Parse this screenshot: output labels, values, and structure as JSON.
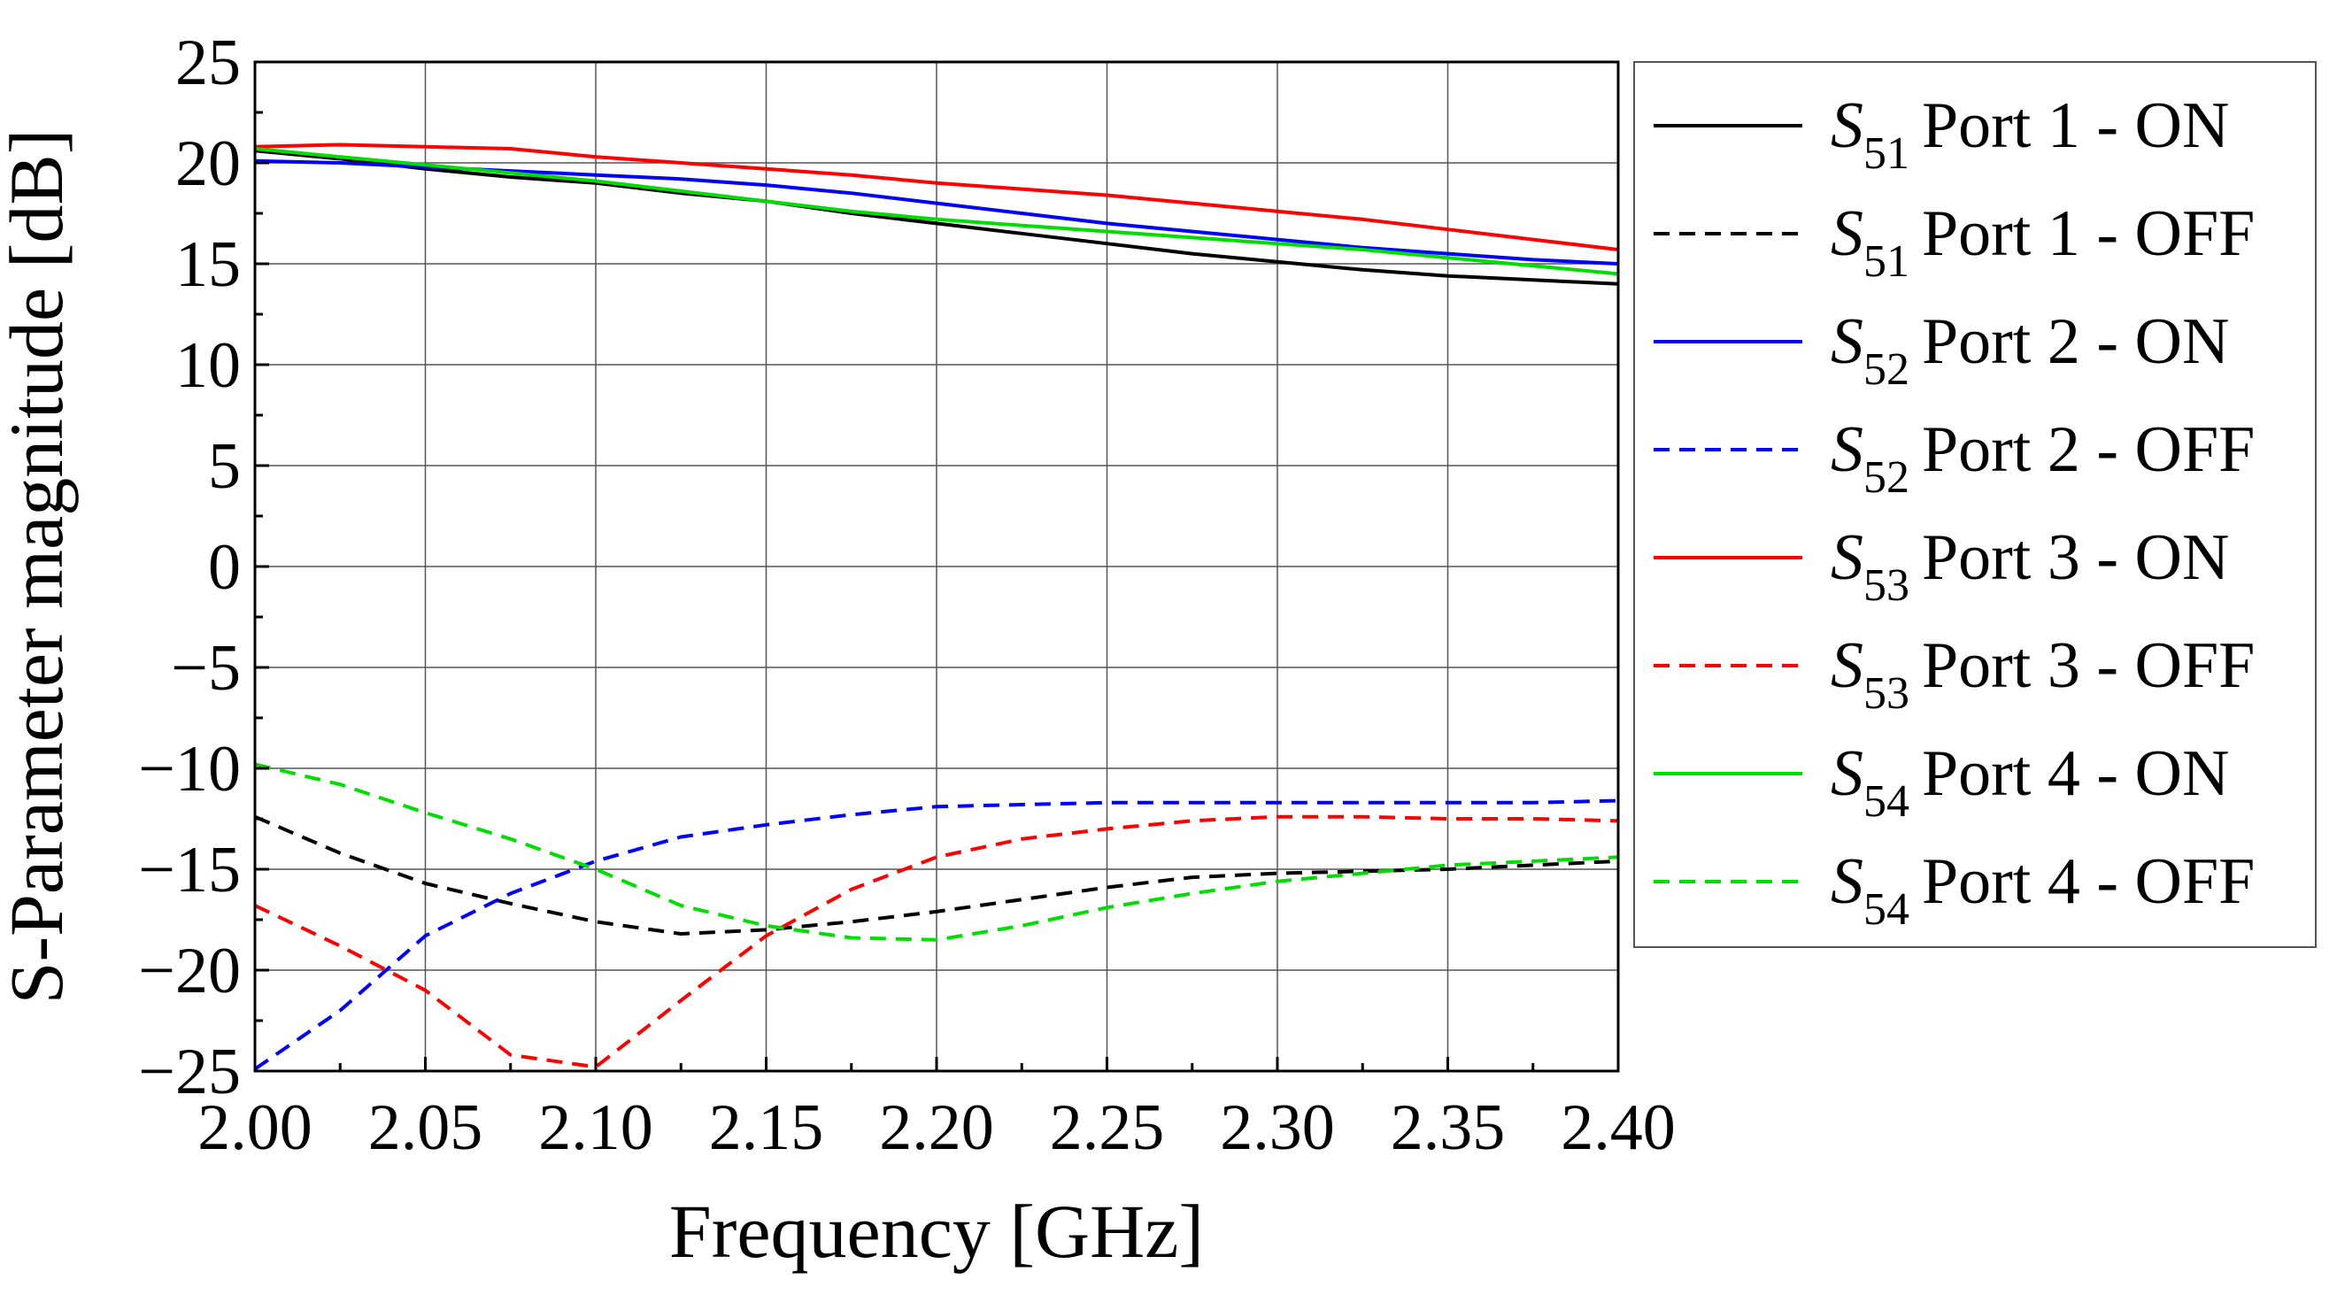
{
  "chart_data": {
    "type": "line",
    "title": "",
    "xlabel": "Frequency [GHz]",
    "ylabel": "S-Parameter magnitude [dB]",
    "xlim": [
      2.0,
      2.4
    ],
    "ylim": [
      -25,
      25
    ],
    "grid": true,
    "legend_position": "right",
    "x_ticks": [
      2.0,
      2.05,
      2.1,
      2.15,
      2.2,
      2.25,
      2.3,
      2.35,
      2.4
    ],
    "x_tick_labels": [
      "2.00",
      "2.05",
      "2.10",
      "2.15",
      "2.20",
      "2.25",
      "2.30",
      "2.35",
      "2.40"
    ],
    "y_ticks": [
      25,
      20,
      15,
      10,
      5,
      0,
      -5,
      -10,
      -15,
      -20,
      -25
    ],
    "y_tick_labels": [
      "25",
      "20",
      "15",
      "10",
      "5",
      "0",
      "−5",
      "−10",
      "−15",
      "−20",
      "−25"
    ],
    "x": [
      2.0,
      2.025,
      2.05,
      2.075,
      2.1,
      2.125,
      2.15,
      2.175,
      2.2,
      2.225,
      2.25,
      2.275,
      2.3,
      2.325,
      2.35,
      2.375,
      2.4
    ],
    "series": [
      {
        "name": "Port 1 - ON",
        "symbol": "S",
        "sub": "51",
        "color": "#000000",
        "dash": "solid",
        "values": [
          20.6,
          20.2,
          19.7,
          19.3,
          19.0,
          18.5,
          18.1,
          17.5,
          17.0,
          16.5,
          16.0,
          15.5,
          15.1,
          14.7,
          14.4,
          14.2,
          14.0
        ]
      },
      {
        "name": "Port 1 - OFF",
        "symbol": "S",
        "sub": "51",
        "color": "#000000",
        "dash": "dashed",
        "values": [
          -12.4,
          -14.2,
          -15.7,
          -16.7,
          -17.6,
          -18.2,
          -18.0,
          -17.6,
          -17.1,
          -16.5,
          -15.9,
          -15.4,
          -15.2,
          -15.1,
          -15.0,
          -14.8,
          -14.6
        ]
      },
      {
        "name": "Port 2 - ON",
        "symbol": "S",
        "sub": "52",
        "color": "#0000ff",
        "dash": "solid",
        "values": [
          20.1,
          20.0,
          19.8,
          19.6,
          19.4,
          19.2,
          18.9,
          18.5,
          18.0,
          17.5,
          17.0,
          16.6,
          16.2,
          15.8,
          15.5,
          15.2,
          15.0
        ]
      },
      {
        "name": "Port 2 - OFF",
        "symbol": "S",
        "sub": "52",
        "color": "#0000ff",
        "dash": "dashed",
        "values": [
          -24.9,
          -22.0,
          -18.3,
          -16.2,
          -14.6,
          -13.4,
          -12.8,
          -12.3,
          -11.9,
          -11.8,
          -11.7,
          -11.7,
          -11.7,
          -11.7,
          -11.7,
          -11.7,
          -11.6
        ]
      },
      {
        "name": "Port 3 - ON",
        "symbol": "S",
        "sub": "53",
        "color": "#ff0000",
        "dash": "solid",
        "values": [
          20.8,
          20.9,
          20.8,
          20.7,
          20.3,
          20.0,
          19.7,
          19.4,
          19.0,
          18.7,
          18.4,
          18.0,
          17.6,
          17.2,
          16.7,
          16.2,
          15.7
        ]
      },
      {
        "name": "Port 3 - OFF",
        "symbol": "S",
        "sub": "53",
        "color": "#ff0000",
        "dash": "dashed",
        "values": [
          -16.8,
          -18.8,
          -21.0,
          -24.2,
          -24.8,
          -21.5,
          -18.3,
          -16.0,
          -14.4,
          -13.5,
          -13.0,
          -12.6,
          -12.4,
          -12.4,
          -12.5,
          -12.5,
          -12.6
        ]
      },
      {
        "name": "Port 4 - ON",
        "symbol": "S",
        "sub": "54",
        "color": "#00dd00",
        "dash": "solid",
        "values": [
          20.7,
          20.3,
          19.9,
          19.5,
          19.1,
          18.6,
          18.1,
          17.6,
          17.2,
          16.9,
          16.6,
          16.3,
          16.0,
          15.7,
          15.3,
          14.9,
          14.5
        ]
      },
      {
        "name": "Port 4 - OFF",
        "symbol": "S",
        "sub": "54",
        "color": "#00dd00",
        "dash": "dashed",
        "values": [
          -9.8,
          -10.8,
          -12.2,
          -13.5,
          -15.0,
          -16.8,
          -17.8,
          -18.4,
          -18.5,
          -17.8,
          -16.9,
          -16.2,
          -15.6,
          -15.2,
          -14.8,
          -14.6,
          -14.4
        ]
      }
    ]
  }
}
